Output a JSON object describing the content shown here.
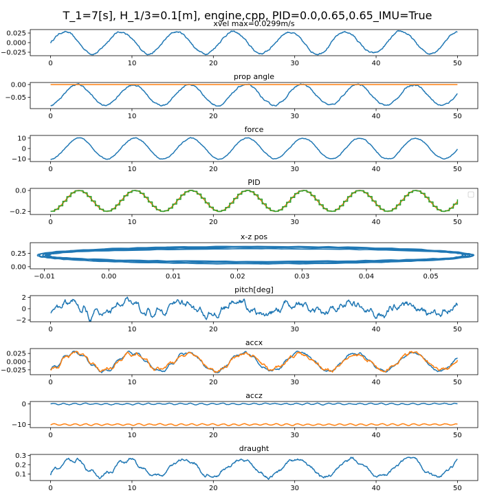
{
  "figure": {
    "suptitle": "T_1=7[s], H_1/3=0.1[m], engine,cpp, PID=0.0,0.65,0.65_IMU=True",
    "colors": {
      "blue": "#1f77b4",
      "orange": "#ff7f0e",
      "green": "#2ca02c"
    }
  },
  "chart_data": [
    {
      "type": "line",
      "title": "xvel max=0.0299m/s",
      "x_range": [
        0,
        50
      ],
      "xlim": [
        -2.5,
        52.5
      ],
      "ylim": [
        -0.034,
        0.034
      ],
      "xticks": [
        0,
        10,
        20,
        30,
        40,
        50
      ],
      "xtick_labels": [
        "0",
        "10",
        "20",
        "30",
        "40",
        "50"
      ],
      "yticks": [
        -0.025,
        0,
        0.025
      ],
      "ytick_labels": [
        "−0.025",
        "0.000",
        "0.025"
      ],
      "series": [
        {
          "color": "blue",
          "kind": "sine",
          "offset": 0,
          "amplitude": 0.028,
          "period": 6.9,
          "phase": 0,
          "noise": 0.003
        }
      ]
    },
    {
      "type": "line",
      "title": "prop angle",
      "x_range": [
        0,
        50
      ],
      "xlim": [
        -2.5,
        52.5
      ],
      "ylim": [
        -0.095,
        0.008
      ],
      "xticks": [
        0,
        10,
        20,
        30,
        40,
        50
      ],
      "xtick_labels": [
        "0",
        "10",
        "20",
        "30",
        "40",
        "50"
      ],
      "yticks": [
        -0.05,
        0
      ],
      "ytick_labels": [
        "−0.05",
        "0.00"
      ],
      "series": [
        {
          "color": "blue",
          "kind": "sine",
          "offset": -0.041,
          "amplitude": 0.041,
          "period": 6.9,
          "phase": 1.4,
          "noise": 0.004
        },
        {
          "color": "orange",
          "kind": "const",
          "value": 0
        }
      ]
    },
    {
      "type": "line",
      "title": "force",
      "x_range": [
        0,
        50
      ],
      "xlim": [
        -2.5,
        52.5
      ],
      "ylim": [
        -12.5,
        12.5
      ],
      "xticks": [
        0,
        10,
        20,
        30,
        40,
        50
      ],
      "xtick_labels": [
        "0",
        "10",
        "20",
        "30",
        "40",
        "50"
      ],
      "yticks": [
        -10,
        0,
        10
      ],
      "ytick_labels": [
        "−10",
        "0",
        "10"
      ],
      "series": [
        {
          "color": "blue",
          "kind": "sine",
          "offset": 0,
          "amplitude": 10,
          "period": 6.9,
          "phase": 1.6,
          "noise": 0.6
        }
      ]
    },
    {
      "type": "line",
      "title": "PID",
      "x_range": [
        0,
        50
      ],
      "xlim": [
        -2.5,
        52.5
      ],
      "ylim": [
        -0.23,
        0.02
      ],
      "xticks": [
        0,
        10,
        20,
        30,
        40,
        50
      ],
      "xtick_labels": [
        "0",
        "10",
        "20",
        "30",
        "40",
        "50"
      ],
      "yticks": [
        -0.2,
        0
      ],
      "ytick_labels": [
        "−0.2",
        "0.0"
      ],
      "legend": "right, empty",
      "series": [
        {
          "color": "blue",
          "kind": "sine",
          "offset": -0.1,
          "amplitude": 0.1,
          "period": 6.9,
          "phase": 1.6,
          "noise": 0.0
        },
        {
          "color": "orange",
          "kind": "sine",
          "offset": -0.1,
          "amplitude": 0.1,
          "period": 6.9,
          "phase": 1.6,
          "noise": 0.0
        },
        {
          "color": "green",
          "kind": "step",
          "step": 0.5,
          "offset": -0.1,
          "amplitude": 0.1,
          "period": 6.9,
          "phase": 1.4,
          "noise": 0.0
        }
      ]
    },
    {
      "type": "line",
      "title": "x-z pos",
      "x_range": [
        -0.01,
        0.057
      ],
      "xlim": [
        -0.0122,
        0.0573
      ],
      "ylim": [
        -0.04,
        0.45
      ],
      "xticks": [
        -0.01,
        0,
        0.01,
        0.02,
        0.03,
        0.04,
        0.05
      ],
      "xtick_labels": [
        "−0.01",
        "0.00",
        "0.01",
        "0.02",
        "0.03",
        "0.04",
        "0.05"
      ],
      "yticks": [
        0,
        0.25
      ],
      "ytick_labels": [
        "0.00",
        "0.25"
      ],
      "series": [
        {
          "color": "blue",
          "kind": "loop",
          "x_min": -0.0102,
          "x_max": 0.0558,
          "y_min": 0.05,
          "y_max": 0.38,
          "loops": 7
        }
      ]
    },
    {
      "type": "line",
      "title": "pitch[deg]",
      "x_range": [
        0,
        50
      ],
      "xlim": [
        -2.5,
        52.5
      ],
      "ylim": [
        -2.3,
        2.3
      ],
      "xticks": [
        0,
        10,
        20,
        30,
        40,
        50
      ],
      "xtick_labels": [
        "0",
        "10",
        "20",
        "30",
        "40",
        "50"
      ],
      "yticks": [
        -2,
        0,
        2
      ],
      "ytick_labels": [
        "−2",
        "0",
        "2"
      ],
      "series": [
        {
          "color": "blue",
          "kind": "sine",
          "offset": 0,
          "amplitude": 1.1,
          "period": 6.9,
          "phase": 0.4,
          "noise": 0.7,
          "hf_amp": 0.55,
          "hf_period": 1.3
        }
      ]
    },
    {
      "type": "line",
      "title": "accx",
      "x_range": [
        0,
        50
      ],
      "xlim": [
        -2.5,
        52.5
      ],
      "ylim": [
        -0.04,
        0.04
      ],
      "xticks": [
        0,
        10,
        20,
        30,
        40,
        50
      ],
      "xtick_labels": [
        "0",
        "10",
        "20",
        "30",
        "40",
        "50"
      ],
      "yticks": [
        -0.025,
        0,
        0.025
      ],
      "ytick_labels": [
        "−0.025",
        "0.000",
        "0.025"
      ],
      "series": [
        {
          "color": "blue",
          "kind": "sine",
          "offset": 0,
          "amplitude": 0.028,
          "period": 6.9,
          "phase": 1.2,
          "noise": 0.004,
          "hf_amp": 0.006,
          "hf_period": 1.3
        },
        {
          "color": "orange",
          "kind": "sine",
          "offset": 0,
          "amplitude": 0.026,
          "period": 6.9,
          "phase": 1.25,
          "noise": 0.006,
          "hf_amp": 0.005,
          "hf_period": 1.3
        }
      ]
    },
    {
      "type": "line",
      "title": "accz",
      "x_range": [
        0,
        50
      ],
      "xlim": [
        -2.5,
        52.5
      ],
      "ylim": [
        -11.5,
        1.2
      ],
      "xticks": [
        0,
        10,
        20,
        30,
        40,
        50
      ],
      "xtick_labels": [
        "0",
        "10",
        "20",
        "30",
        "40",
        "50"
      ],
      "yticks": [
        -10,
        0
      ],
      "ytick_labels": [
        "−10",
        "0"
      ],
      "series": [
        {
          "color": "blue",
          "kind": "sine",
          "offset": 0,
          "amplitude": 0.3,
          "period": 1.3,
          "phase": 0,
          "noise": 0.15
        },
        {
          "color": "orange",
          "kind": "sine",
          "offset": -10,
          "amplitude": 0.35,
          "period": 1.3,
          "phase": 0.5,
          "noise": 0.1
        }
      ]
    },
    {
      "type": "line",
      "title": "draught",
      "x_range": [
        0,
        50
      ],
      "xlim": [
        -2.5,
        52.5
      ],
      "ylim": [
        0.03,
        0.31
      ],
      "xticks": [
        0,
        10,
        20,
        30,
        40,
        50
      ],
      "xtick_labels": [
        "0",
        "10",
        "20",
        "30",
        "40",
        "50"
      ],
      "yticks": [
        0.1,
        0.2,
        0.3
      ],
      "ytick_labels": [
        "0.1",
        "0.2",
        "0.3"
      ],
      "series": [
        {
          "color": "blue",
          "kind": "sine",
          "offset": 0.165,
          "amplitude": 0.09,
          "period": 6.9,
          "phase": 0.9,
          "noise": 0.02,
          "hf_amp": 0.025,
          "hf_period": 1.6
        }
      ]
    }
  ]
}
